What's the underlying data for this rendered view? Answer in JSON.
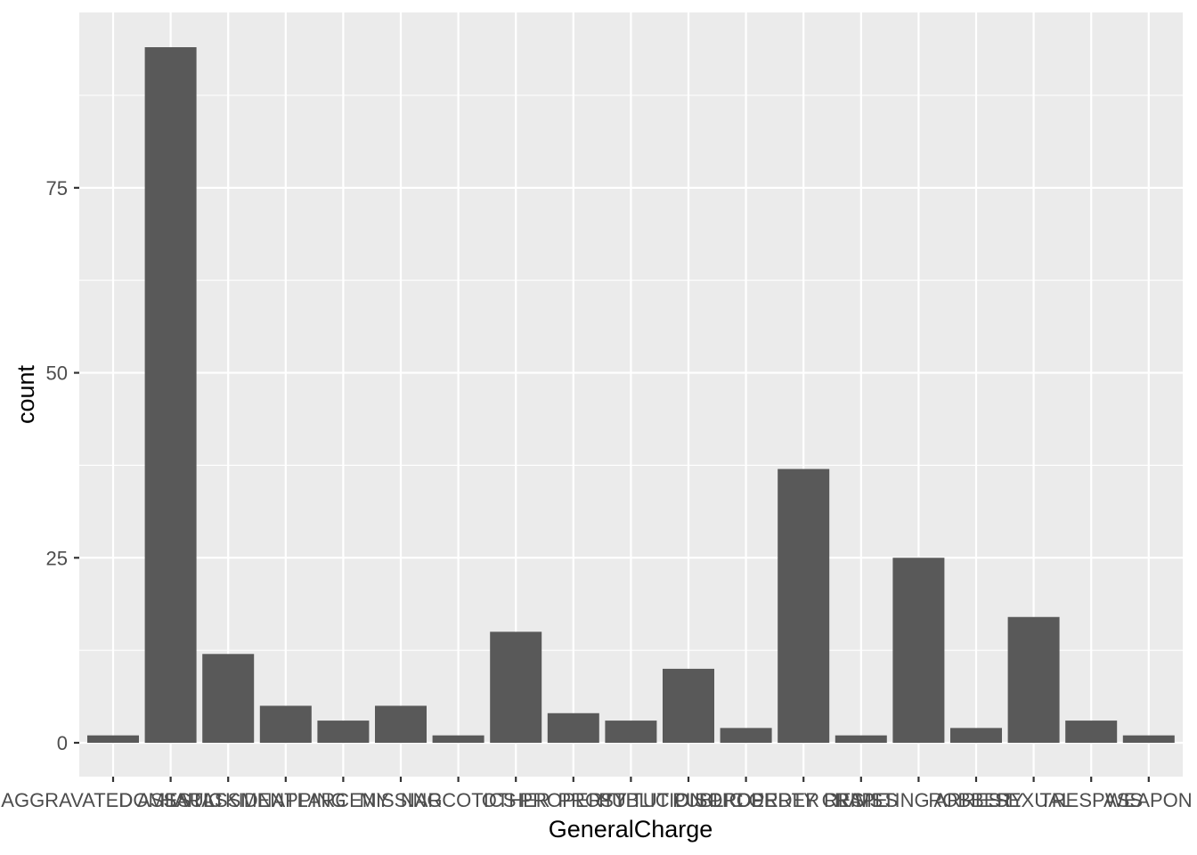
{
  "chart_data": {
    "type": "bar",
    "xlabel": "GeneralCharge",
    "ylabel": "count",
    "categories": [
      "AGGRAVATED ASSAULT",
      "DOMESTIC",
      "HARASSMENT",
      "KIDNAPPING",
      "LARCENY",
      "MISSING",
      "NARCOTICS",
      "OTHER",
      "PROPERTY",
      "PROSTITUTION",
      "PUBLIC DISORDER",
      "PUBLIC ORDER",
      "PROPERTY CRIMES",
      "RAPE",
      "RESISTING ARREST",
      "ROBBERY",
      "SEXUAL",
      "TRESPASS",
      "WEAPON"
    ],
    "values": [
      1,
      94,
      12,
      5,
      3,
      5,
      1,
      15,
      4,
      3,
      10,
      2,
      37,
      1,
      25,
      2,
      17,
      3,
      1
    ],
    "ylim": [
      0,
      94
    ],
    "y_ticks": [
      0,
      25,
      50,
      75
    ],
    "y_tick_labels": [
      "0",
      "25",
      "50",
      "75"
    ],
    "grid": true,
    "legend": "none",
    "colors": {
      "panel": "#EBEBEB",
      "grid": "#FFFFFF",
      "bar": "#595959",
      "tick_text": "#4D4D4D"
    }
  }
}
